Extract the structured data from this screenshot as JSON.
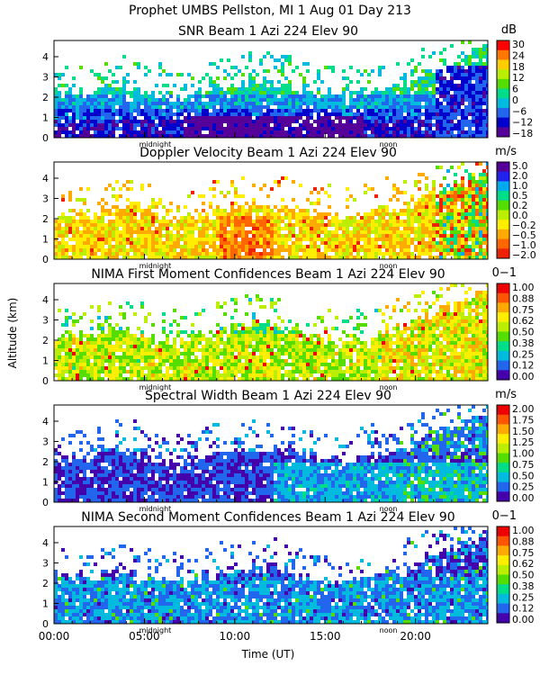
{
  "page_title": "Prophet  UMBS Pellston, MI   1 Aug 01 Day 213",
  "x_axis": {
    "label": "Time (UT)",
    "range": [
      0,
      24
    ],
    "ticks": [
      0,
      5,
      10,
      15,
      20
    ],
    "tick_labels": [
      "00:00",
      "05:00",
      "10:00",
      "15:00",
      "20:00"
    ],
    "markers": [
      {
        "text": "midnight",
        "hour": 5.6
      },
      {
        "text": "noon",
        "hour": 18.5
      }
    ]
  },
  "y_axis_label": "Altitude (km)",
  "chart_data": [
    {
      "type": "heatmap",
      "title": "SNR Beam 1 Azi 224 Elev 90",
      "unit": "dB",
      "ylim": [
        0,
        4.8
      ],
      "y_ticks": [
        "0",
        "1",
        "2",
        "3",
        "4"
      ],
      "colorbar_labels": [
        "30",
        "24",
        "18",
        "12",
        "6",
        "0",
        "−6",
        "−12",
        "−18"
      ],
      "colorbar_colors": [
        "#ff0000",
        "#ff7700",
        "#ffcc00",
        "#bbee00",
        "#55dd00",
        "#00dd88",
        "#00bbdd",
        "#2266ee",
        "#0000cc",
        "#550099"
      ]
    },
    {
      "type": "heatmap",
      "title": "Doppler Velocity Beam 1 Azi 224 Elev 90",
      "unit": "m/s",
      "ylim": [
        0,
        4.8
      ],
      "y_ticks": [
        "0",
        "1",
        "2",
        "3",
        "4"
      ],
      "colorbar_labels": [
        "5.0",
        "2.0",
        "1.0",
        "0.5",
        "0.2",
        "0.0",
        "−0.2",
        "−0.5",
        "−1.0",
        "−2.0"
      ],
      "colorbar_colors": [
        "#550099",
        "#2222ee",
        "#00aaee",
        "#00dd88",
        "#55dd00",
        "#bbee00",
        "#ffee00",
        "#ffaa00",
        "#ff6600",
        "#ee2200"
      ]
    },
    {
      "type": "heatmap",
      "title": "NIMA First Moment Confidences Beam 1 Azi 224 Elev 90",
      "unit": "0−1",
      "ylim": [
        0,
        4.8
      ],
      "y_ticks": [
        "0",
        "1",
        "2",
        "3",
        "4"
      ],
      "colorbar_labels": [
        "1.00",
        "0.88",
        "0.75",
        "0.62",
        "0.50",
        "0.38",
        "0.25",
        "0.12",
        "0.00"
      ],
      "colorbar_colors": [
        "#ee0000",
        "#ff5500",
        "#ffaa00",
        "#ffee00",
        "#bbee00",
        "#55dd00",
        "#00dd88",
        "#00bbdd",
        "#2266ee",
        "#4400aa"
      ]
    },
    {
      "type": "heatmap",
      "title": "Spectral Width Beam 1 Azi 224 Elev 90",
      "unit": "m/s",
      "ylim": [
        0,
        4.8
      ],
      "y_ticks": [
        "0",
        "1",
        "2",
        "3",
        "4"
      ],
      "colorbar_labels": [
        "2.00",
        "1.75",
        "1.50",
        "1.25",
        "1.00",
        "0.75",
        "0.50",
        "0.25",
        "0.00"
      ],
      "colorbar_colors": [
        "#ee0000",
        "#ff5500",
        "#ffaa00",
        "#ffee00",
        "#bbee00",
        "#55dd00",
        "#00dd88",
        "#00bbdd",
        "#2266ee",
        "#4400aa"
      ]
    },
    {
      "type": "heatmap",
      "title": "NIMA Second Moment Confidences Beam 1 Azi 224 Elev 90",
      "unit": "0−1",
      "ylim": [
        0,
        4.8
      ],
      "y_ticks": [
        "0",
        "1",
        "2",
        "3",
        "4"
      ],
      "colorbar_labels": [
        "1.00",
        "0.88",
        "0.75",
        "0.62",
        "0.50",
        "0.38",
        "0.25",
        "0.12",
        "0.00"
      ],
      "colorbar_colors": [
        "#ee0000",
        "#ff5500",
        "#ffaa00",
        "#ffee00",
        "#bbee00",
        "#55dd00",
        "#00dd88",
        "#00bbdd",
        "#2266ee",
        "#4400aa"
      ]
    }
  ]
}
